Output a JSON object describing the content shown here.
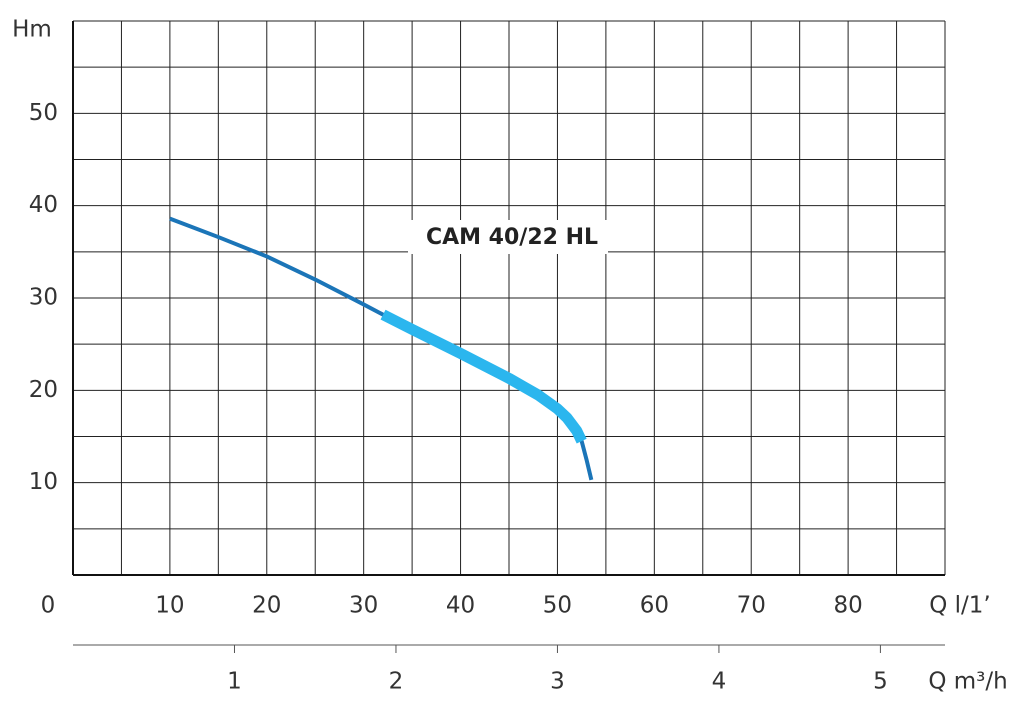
{
  "chart_data": {
    "type": "line",
    "annotation": "CAM 40/22 HL",
    "ylabel": "Hm",
    "xlabel": "Q l/1’",
    "x2label": "Q m³/h",
    "x": [
      10,
      15,
      20,
      25,
      30,
      32,
      35,
      40,
      45,
      48,
      50,
      51,
      52,
      52.5,
      53,
      53.5
    ],
    "series": [
      {
        "color": "#1b75b8",
        "values": [
          38.6,
          36.6,
          34.5,
          32,
          29.3,
          28.2,
          26.6,
          24,
          21.3,
          19.5,
          18,
          17,
          15.6,
          14.5,
          12.5,
          10.3
        ]
      },
      {
        "color": "#2bb6ee",
        "values": [
          null,
          null,
          null,
          null,
          null,
          28.2,
          26.6,
          24,
          21.3,
          19.5,
          18,
          17,
          15.6,
          14.5,
          null,
          null
        ]
      }
    ],
    "xlim": [
      0,
      90
    ],
    "ylim": [
      0,
      60
    ],
    "xticks": [
      0,
      10,
      20,
      30,
      40,
      50,
      60,
      70,
      80
    ],
    "yticks": [
      10,
      20,
      30,
      40,
      50
    ],
    "xgrid": [
      5,
      10,
      15,
      20,
      25,
      30,
      35,
      40,
      45,
      50,
      55,
      60,
      65,
      70,
      75,
      80,
      85,
      90
    ],
    "ygrid": [
      5,
      10,
      15,
      20,
      25,
      30,
      35,
      40,
      45,
      50,
      55,
      60
    ],
    "x2lim": [
      0,
      5.4
    ],
    "x2ticks": [
      1,
      2,
      3,
      4,
      5
    ]
  }
}
